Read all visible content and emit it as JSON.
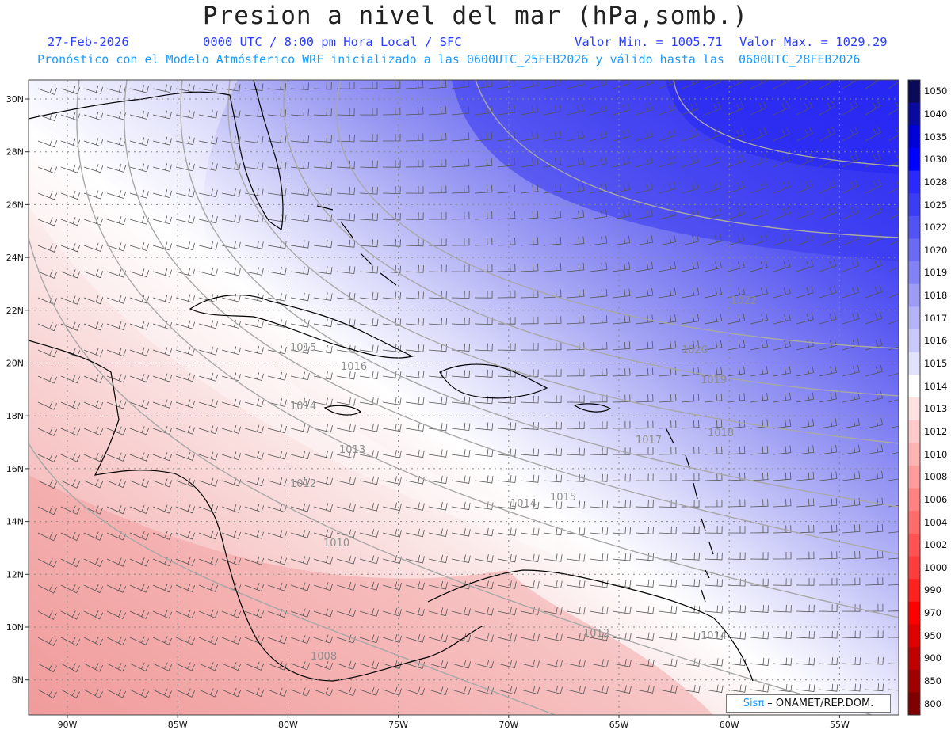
{
  "header": {
    "title": "Presion a nivel del mar (hPa,somb.)",
    "date": "27-Feb-2026",
    "time": "0000 UTC / 8:00 pm Hora Local / SFC",
    "min": "Valor Min. = 1005.71",
    "max": "Valor Max. = 1029.29",
    "forecast": "Pronóstico con el Modelo Atmósferico WRF inicializado a las 0600UTC_25FEB2026 y válido hasta las  0600UTC_28FEB2026"
  },
  "axes": {
    "lat_labels": [
      "30N",
      "28N",
      "26N",
      "24N",
      "22N",
      "20N",
      "18N",
      "16N",
      "14N",
      "12N",
      "10N",
      "8N"
    ],
    "lon_labels": [
      "90W",
      "85W",
      "80W",
      "75W",
      "70W",
      "65W",
      "60W",
      "55W"
    ]
  },
  "colorbar": {
    "labels": [
      "1050",
      "1040",
      "1035",
      "1030",
      "1028",
      "1025",
      "1022",
      "1020",
      "1019",
      "1018",
      "1017",
      "1016",
      "1015",
      "1014",
      "1013",
      "1012",
      "1010",
      "1008",
      "1006",
      "1004",
      "1002",
      "1000",
      "990",
      "970",
      "950",
      "900",
      "850",
      "800"
    ],
    "colors": [
      "#0a0a5a",
      "#0a0aa0",
      "#0000d8",
      "#0000ff",
      "#2a2aff",
      "#3c3cf5",
      "#5252f5",
      "#6a6af5",
      "#8282f5",
      "#9c9cf5",
      "#b4b4f7",
      "#cacafa",
      "#e2e2fc",
      "#ffffff",
      "#ffe2e2",
      "#ffcaca",
      "#ffb4b4",
      "#ff9c9c",
      "#ff8282",
      "#ff6a6a",
      "#ff5252",
      "#ff3c3c",
      "#ff2020",
      "#ff0000",
      "#e00000",
      "#c00000",
      "#a00000",
      "#800000"
    ]
  },
  "isobars": [
    "1022",
    "1020",
    "1019",
    "1018",
    "1017",
    "1016",
    "1015",
    "1014",
    "1013",
    "1012",
    "1010",
    "1008",
    "1015",
    "1014",
    "1012",
    "1014"
  ],
  "credit": {
    "logo": "Sisπ",
    "text": " – ONAMET/REP.DOM."
  }
}
